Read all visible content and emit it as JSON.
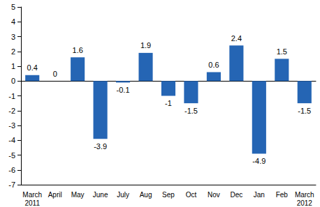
{
  "chart_data": {
    "type": "bar",
    "categories": [
      "March\n2011",
      "April",
      "May",
      "June",
      "July",
      "Aug",
      "Sep",
      "Oct",
      "Nov",
      "Dec",
      "Jan",
      "Feb",
      "March\n2012"
    ],
    "values": [
      0.4,
      0,
      1.6,
      -3.9,
      -0.1,
      1.9,
      -1,
      -1.5,
      0.6,
      2.4,
      -4.9,
      1.5,
      -1.5
    ],
    "color": "#2565b4",
    "ylim": [
      -7,
      5
    ],
    "yticks": [
      -7,
      -6,
      -5,
      -4,
      -3,
      -2,
      -1,
      0,
      1,
      2,
      3,
      4,
      5
    ],
    "grid": false,
    "data_labels": true
  }
}
